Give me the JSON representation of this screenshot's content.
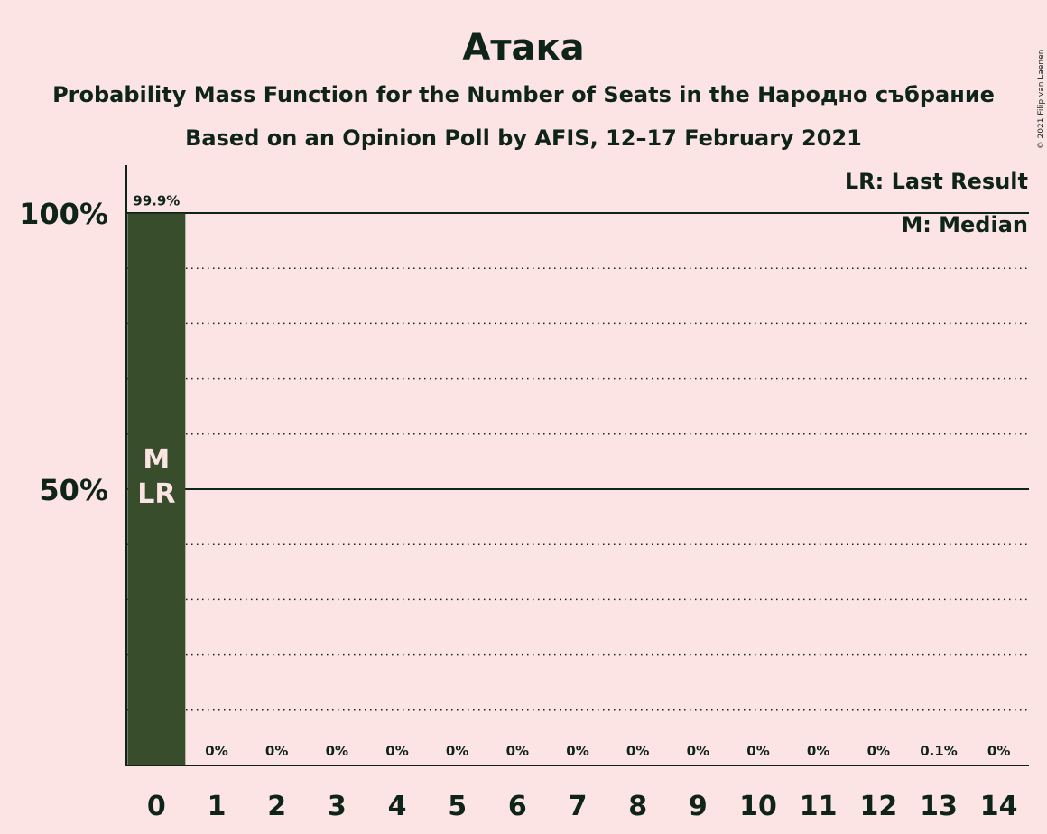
{
  "chart_data": {
    "type": "bar",
    "title": "Атака",
    "subtitle": "Probability Mass Function for the Number of Seats in the Народно събрание",
    "subtitle2": "Based on an Opinion Poll by AFIS, 12–17 February 2021",
    "categories": [
      "0",
      "1",
      "2",
      "3",
      "4",
      "5",
      "6",
      "7",
      "8",
      "9",
      "10",
      "11",
      "12",
      "13",
      "14"
    ],
    "values": [
      99.9,
      0,
      0,
      0,
      0,
      0,
      0,
      0,
      0,
      0,
      0,
      0,
      0,
      0.1,
      0
    ],
    "value_labels": [
      "99.9%",
      "0%",
      "0%",
      "0%",
      "0%",
      "0%",
      "0%",
      "0%",
      "0%",
      "0%",
      "0%",
      "0%",
      "0%",
      "0.1%",
      "0%"
    ],
    "ylim": [
      0,
      110
    ],
    "yticks": [
      {
        "value": 50,
        "label": "50%"
      },
      {
        "value": 100,
        "label": "100%"
      }
    ],
    "gridlines_dotted": [
      10,
      20,
      30,
      40,
      60,
      70,
      80,
      90
    ],
    "gridlines_solid": [
      50,
      100
    ],
    "bar_markers": [
      {
        "category": "0",
        "lines": [
          "M",
          "LR"
        ]
      }
    ],
    "legend": [
      "LR: Last Result",
      "M: Median"
    ],
    "legend_position": "top-right",
    "bar_color": "#374d2b",
    "background_color": "#fde4e4",
    "text_color": "#0f2418",
    "marker_text_color": "#fde4e4",
    "copyright": "© 2021 Filip van Laenen"
  }
}
